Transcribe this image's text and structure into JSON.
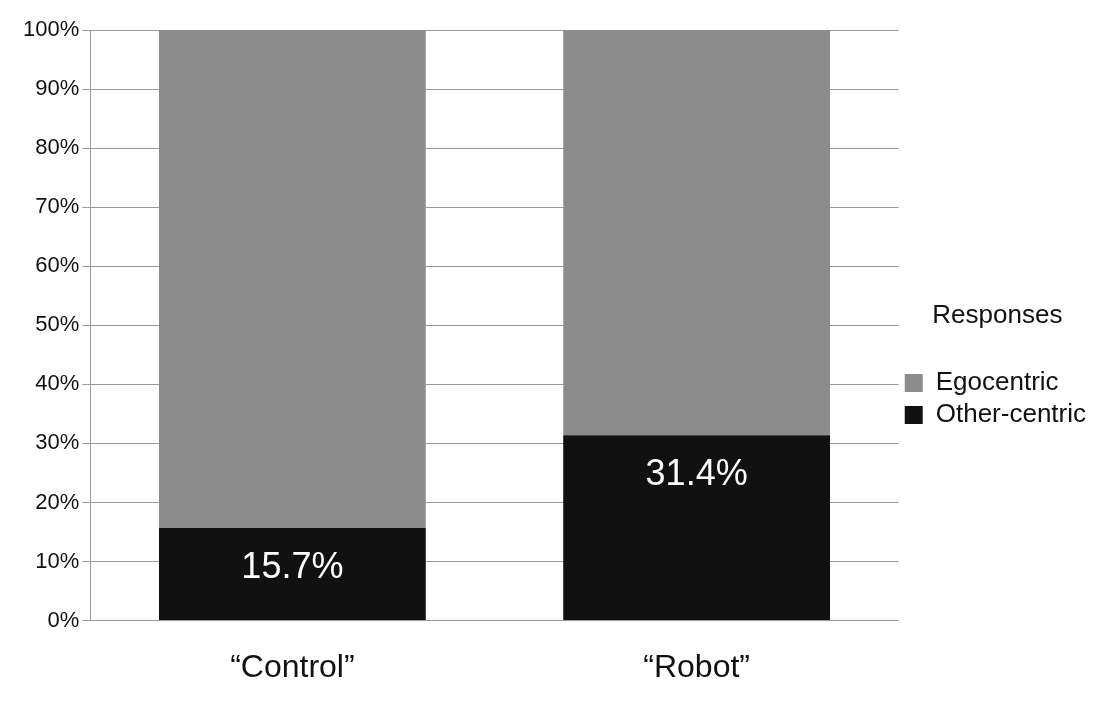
{
  "chart_data": {
    "type": "bar",
    "stacked": true,
    "categories": [
      "“Control”",
      "“Robot”"
    ],
    "series": [
      {
        "name": "Other-centric",
        "color": "#111111",
        "values": [
          15.7,
          31.4
        ],
        "value_labels": [
          "15.7%",
          "31.4%"
        ]
      },
      {
        "name": "Egocentric",
        "color": "#8c8c8c",
        "values": [
          84.3,
          68.6
        ]
      }
    ],
    "ylim": [
      0,
      100
    ],
    "yticks": [
      {
        "value": 0,
        "label": "0%"
      },
      {
        "value": 10,
        "label": "10%"
      },
      {
        "value": 20,
        "label": "20%"
      },
      {
        "value": 30,
        "label": "30%"
      },
      {
        "value": 40,
        "label": "40%"
      },
      {
        "value": 50,
        "label": "50%"
      },
      {
        "value": 60,
        "label": "60%"
      },
      {
        "value": 70,
        "label": "70%"
      },
      {
        "value": 80,
        "label": "80%"
      },
      {
        "value": 90,
        "label": "90%"
      },
      {
        "value": 100,
        "label": "100%"
      }
    ],
    "grid": "y",
    "legend": "right",
    "legend_title": "Responses"
  }
}
